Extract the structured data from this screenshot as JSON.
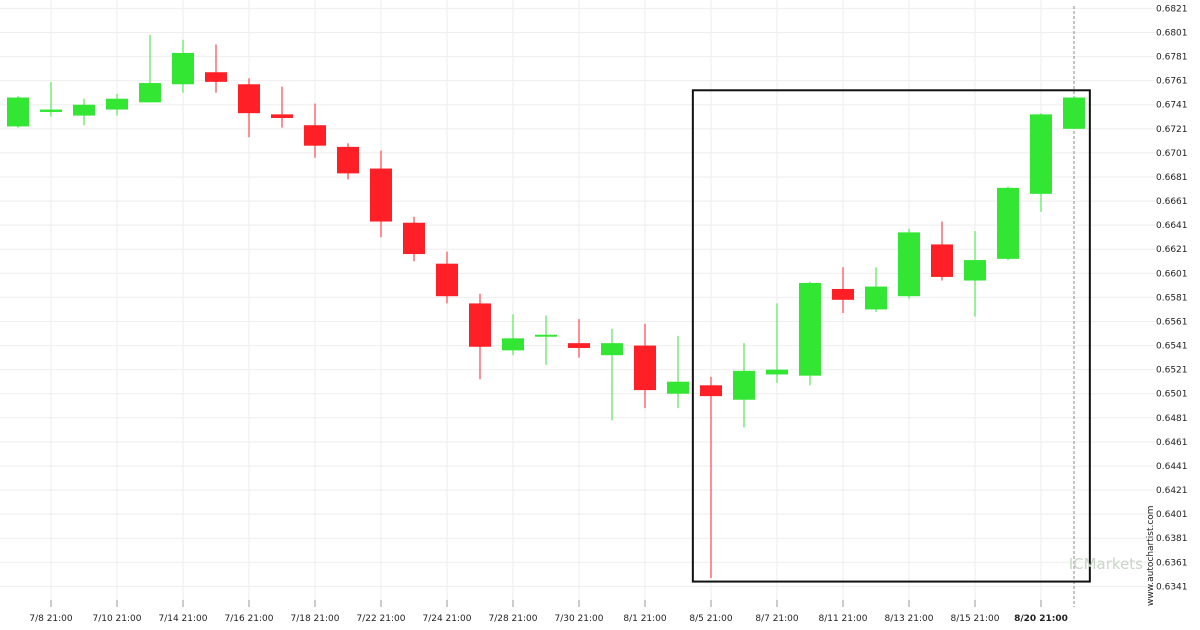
{
  "chart_data": {
    "type": "candlestick",
    "timezone_note": "",
    "y_ticks": [
      "0.6821",
      "0.6801",
      "0.6781",
      "0.6761",
      "0.6741",
      "0.6721",
      "0.6701",
      "0.6681",
      "0.6661",
      "0.6641",
      "0.6621",
      "0.6601",
      "0.6581",
      "0.6561",
      "0.6541",
      "0.6521",
      "0.6501",
      "0.6481",
      "0.6461",
      "0.6441",
      "0.6421",
      "0.6401",
      "0.6381",
      "0.6361",
      "0.6341"
    ],
    "ylim": [
      0.6338,
      0.6823
    ],
    "x_ticks": [
      {
        "label": "7/8 21:00",
        "index": 1
      },
      {
        "label": "7/10 21:00",
        "index": 3
      },
      {
        "label": "7/14 21:00",
        "index": 5
      },
      {
        "label": "7/16 21:00",
        "index": 7
      },
      {
        "label": "7/18 21:00",
        "index": 9
      },
      {
        "label": "7/22 21:00",
        "index": 11
      },
      {
        "label": "7/24 21:00",
        "index": 13
      },
      {
        "label": "7/28 21:00",
        "index": 15
      },
      {
        "label": "7/30 21:00",
        "index": 17
      },
      {
        "label": "8/1 21:00",
        "index": 19
      },
      {
        "label": "8/5 21:00",
        "index": 21
      },
      {
        "label": "8/7 21:00",
        "index": 23
      },
      {
        "label": "8/11 21:00",
        "index": 25
      },
      {
        "label": "8/13 21:00",
        "index": 27
      },
      {
        "label": "8/15 21:00",
        "index": 29
      },
      {
        "label": "8/20 21:00",
        "index": 31,
        "bold": true
      }
    ],
    "candles": [
      {
        "o": 0.6723,
        "h": 0.6748,
        "l": 0.6722,
        "c": 0.6747
      },
      {
        "o": 0.6735,
        "h": 0.676,
        "l": 0.6731,
        "c": 0.6737
      },
      {
        "o": 0.6732,
        "h": 0.6746,
        "l": 0.6724,
        "c": 0.6741
      },
      {
        "o": 0.6737,
        "h": 0.675,
        "l": 0.6732,
        "c": 0.6746
      },
      {
        "o": 0.6743,
        "h": 0.6799,
        "l": 0.6743,
        "c": 0.6759
      },
      {
        "o": 0.6758,
        "h": 0.6795,
        "l": 0.6751,
        "c": 0.6784
      },
      {
        "o": 0.6768,
        "h": 0.6791,
        "l": 0.6751,
        "c": 0.676
      },
      {
        "o": 0.6758,
        "h": 0.6763,
        "l": 0.6714,
        "c": 0.6734
      },
      {
        "o": 0.6733,
        "h": 0.6756,
        "l": 0.6722,
        "c": 0.673
      },
      {
        "o": 0.6724,
        "h": 0.6742,
        "l": 0.6697,
        "c": 0.6707
      },
      {
        "o": 0.6706,
        "h": 0.6709,
        "l": 0.6679,
        "c": 0.6684
      },
      {
        "o": 0.6688,
        "h": 0.6703,
        "l": 0.6631,
        "c": 0.6644
      },
      {
        "o": 0.6643,
        "h": 0.6648,
        "l": 0.6611,
        "c": 0.6617
      },
      {
        "o": 0.6609,
        "h": 0.6619,
        "l": 0.6576,
        "c": 0.6582
      },
      {
        "o": 0.6576,
        "h": 0.6584,
        "l": 0.6513,
        "c": 0.654
      },
      {
        "o": 0.6537,
        "h": 0.6567,
        "l": 0.6533,
        "c": 0.6547
      },
      {
        "o": 0.655,
        "h": 0.6566,
        "l": 0.6525,
        "c": 0.655
      },
      {
        "o": 0.6543,
        "h": 0.6563,
        "l": 0.6531,
        "c": 0.6539
      },
      {
        "o": 0.6533,
        "h": 0.6555,
        "l": 0.6479,
        "c": 0.6543
      },
      {
        "o": 0.6541,
        "h": 0.6559,
        "l": 0.6489,
        "c": 0.6504
      },
      {
        "o": 0.6501,
        "h": 0.6549,
        "l": 0.6489,
        "c": 0.6511
      },
      {
        "o": 0.6508,
        "h": 0.6515,
        "l": 0.6348,
        "c": 0.6499
      },
      {
        "o": 0.6496,
        "h": 0.6543,
        "l": 0.6473,
        "c": 0.652
      },
      {
        "o": 0.6517,
        "h": 0.6576,
        "l": 0.651,
        "c": 0.6521
      },
      {
        "o": 0.6516,
        "h": 0.6594,
        "l": 0.6508,
        "c": 0.6593
      },
      {
        "o": 0.6588,
        "h": 0.6606,
        "l": 0.6568,
        "c": 0.6579
      },
      {
        "o": 0.6571,
        "h": 0.6606,
        "l": 0.6569,
        "c": 0.659
      },
      {
        "o": 0.6582,
        "h": 0.6638,
        "l": 0.658,
        "c": 0.6635
      },
      {
        "o": 0.6625,
        "h": 0.6644,
        "l": 0.6595,
        "c": 0.6598
      },
      {
        "o": 0.6595,
        "h": 0.6636,
        "l": 0.6565,
        "c": 0.6612
      },
      {
        "o": 0.6613,
        "h": 0.6673,
        "l": 0.6612,
        "c": 0.6672
      },
      {
        "o": 0.6667,
        "h": 0.6734,
        "l": 0.6652,
        "c": 0.6733
      },
      {
        "o": 0.6721,
        "h": 0.6748,
        "l": 0.6721,
        "c": 0.6747
      }
    ],
    "highlight_box": {
      "from_index": 21,
      "to_index": 32,
      "y_top": 0.6753,
      "y_bottom": 0.6345
    },
    "current_marker_index": 32,
    "colors": {
      "up": "#33e633",
      "down": "#ff1f26",
      "grid": "#eeeeee",
      "box": "#111111",
      "marker": "#888888",
      "watermark": "#c9d6c9"
    }
  },
  "watermark": {
    "brand": "ICMarkets"
  },
  "credit": {
    "text": "www.autochartist.com"
  }
}
